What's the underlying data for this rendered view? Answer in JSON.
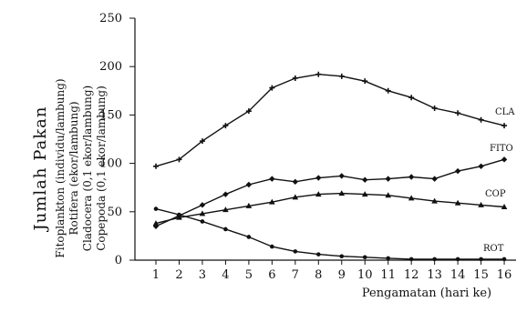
{
  "chart_data": {
    "type": "line",
    "ylabel_main": "Jumlah Pakan",
    "ylabel_lines": [
      "Fitoplankton (individu/lambung)",
      "Rotifera (ekor/lambung)",
      "Cladocera (0,1 ekor/lambung)",
      "Copepoda (0,1 ekor/lambung)"
    ],
    "xlabel": "Pengamatan (hari ke)",
    "x": [
      1,
      2,
      3,
      4,
      5,
      6,
      7,
      8,
      9,
      10,
      11,
      12,
      13,
      14,
      15,
      16
    ],
    "x_tick_labels": [
      "1",
      "2",
      "3",
      "4",
      "5",
      "6",
      "7",
      "8",
      "9",
      "10",
      "11",
      "12",
      "13",
      "14",
      "15",
      "16"
    ],
    "ylim": [
      0,
      250
    ],
    "y_ticks": [
      0,
      50,
      100,
      150,
      200,
      250
    ],
    "grid": false,
    "series": [
      {
        "name": "CLA",
        "marker": "cross",
        "values": [
          97,
          104,
          123,
          139,
          154,
          178,
          188,
          192,
          190,
          185,
          175,
          168,
          157,
          152,
          145,
          139
        ]
      },
      {
        "name": "FITO",
        "marker": "diamond",
        "values": [
          35,
          46,
          57,
          68,
          78,
          84,
          81,
          85,
          87,
          83,
          84,
          86,
          84,
          92,
          97,
          104
        ]
      },
      {
        "name": "COP",
        "marker": "triangle",
        "values": [
          38,
          44,
          48,
          52,
          56,
          60,
          65,
          68,
          69,
          68,
          67,
          64,
          61,
          59,
          57,
          55
        ]
      },
      {
        "name": "ROT",
        "marker": "circle",
        "values": [
          53,
          47,
          40,
          32,
          24,
          14,
          9,
          6,
          4,
          3,
          2,
          1,
          1,
          1,
          1,
          1
        ]
      }
    ]
  }
}
